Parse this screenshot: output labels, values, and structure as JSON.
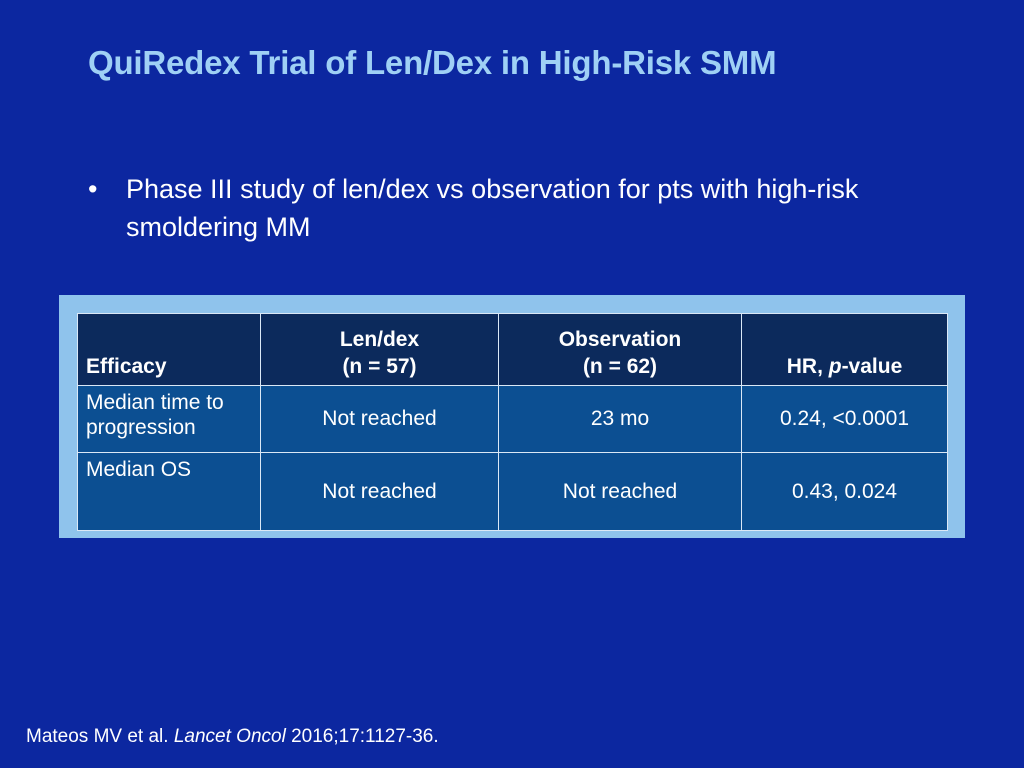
{
  "slide": {
    "title": "QuiRedex Trial of Len/Dex in High-Risk SMM",
    "bullets": [
      "Phase III study of len/dex vs observation for pts with high-risk smoldering MM"
    ],
    "bullet_symbol": "•"
  },
  "table": {
    "headers": {
      "efficacy": "Efficacy",
      "lendex": {
        "line1": "Len/dex",
        "line2": "(n = 57)"
      },
      "observation": {
        "line1": "Observation",
        "line2": "(n = 62)"
      },
      "hr_prefix": "HR, ",
      "hr_p": "p",
      "hr_suffix": "-value"
    },
    "rows": [
      {
        "label": "Median time to progression",
        "lendex": "Not reached",
        "observation": "23 mo",
        "hr": "0.24, <0.0001"
      },
      {
        "label": "Median OS",
        "lendex": "Not reached",
        "observation": "Not reached",
        "hr": "0.43, 0.024"
      }
    ]
  },
  "citation": {
    "authors": "Mateos MV et al. ",
    "journal": "Lancet Oncol",
    "details": " 2016;17:1127-36."
  },
  "colors": {
    "background": "#0c27a0",
    "title": "#9fd0f5",
    "table_frame": "#8fc3ec",
    "header_fill": "#0c2a5c",
    "body_fill": "#0c4f92"
  }
}
